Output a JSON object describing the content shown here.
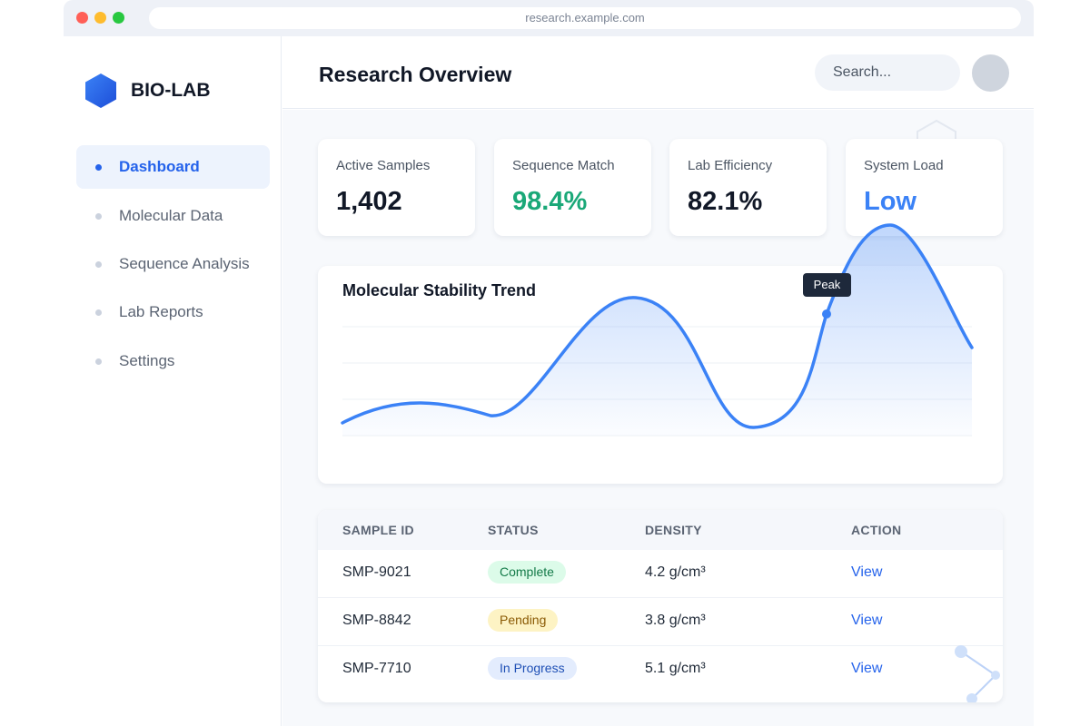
{
  "browser": {
    "url": "research.example.com"
  },
  "sidebar": {
    "logo_text": "BIO-LAB",
    "items": [
      {
        "label": "Dashboard",
        "active": true
      },
      {
        "label": "Molecular Data",
        "active": false
      },
      {
        "label": "Sequence Analysis",
        "active": false
      },
      {
        "label": "Lab Reports",
        "active": false
      },
      {
        "label": "Settings",
        "active": false
      }
    ]
  },
  "header": {
    "title": "Research Overview",
    "search_placeholder": "Search..."
  },
  "stats": [
    {
      "label": "Active Samples",
      "value": "1,402"
    },
    {
      "label": "Sequence Match",
      "value": "98.4%"
    },
    {
      "label": "Lab Efficiency",
      "value": "82.1%"
    },
    {
      "label": "System Load",
      "value": "Low"
    }
  ],
  "chart": {
    "title": "Molecular Stability Trend",
    "tooltip": "Peak"
  },
  "table": {
    "headers": [
      "SAMPLE ID",
      "STATUS",
      "DENSITY",
      "ACTION"
    ],
    "rows": [
      {
        "id": "SMP-9021",
        "status": "Complete",
        "density": "4.2 g/cm³",
        "action": "View"
      },
      {
        "id": "SMP-8842",
        "status": "Pending",
        "density": "3.8 g/cm³",
        "action": "View"
      },
      {
        "id": "SMP-7710",
        "status": "In Progress",
        "density": "5.1 g/cm³",
        "action": "View"
      }
    ]
  },
  "colors": {
    "accent": "#2563eb",
    "success": "#1aa878",
    "chart_line": "#3b82f6"
  }
}
